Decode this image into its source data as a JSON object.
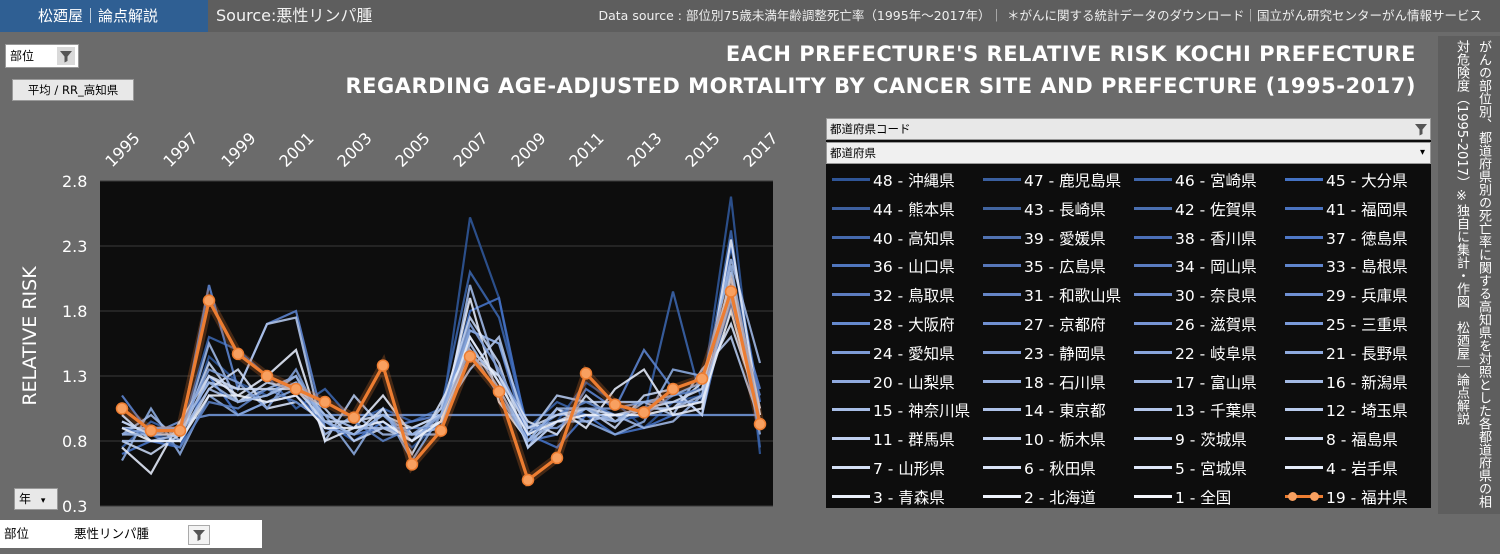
{
  "header": {
    "brand": "松廼屋｜論点解説",
    "source": "Source:悪性リンパ腫",
    "data_source": "Data source : 部位別75歳未満年齢調整死亡率（1995年～2017年）｜ ＊がんに関する統計データのダウンロード｜国立がん研究センターがん情報サービス"
  },
  "filters": {
    "site_label": "部位",
    "avg_label": "平均 / RR_高知県",
    "prefcode_label": "都道府県コード",
    "pref_label": "都道府県",
    "year_label": "年",
    "bottom_key": "部位",
    "bottom_value": "悪性リンパ腫"
  },
  "side_note": "がんの部位別、都道府県別の死亡率に関する高知県を対照とした各都道府県の相対危険度（1995-2017）※独自に集計・作図　松廼屋｜論点解説",
  "colors": {
    "highlight": "#ed7d31",
    "blue_dark": "#2f5597",
    "blue_light": "#dde6f5",
    "plot_bg": "#0d0d0d"
  },
  "chart_data": {
    "type": "line",
    "title_line1": "EACH PREFECTURE'S RELATIVE RISK KOCHI PREFECTURE",
    "title_line2": "REGARDING AGE-ADJUSTED MORTALITY BY CANCER SITE AND PREFECTURE (1995-2017)",
    "ylabel": "RELATIVE RISK",
    "ylim": [
      0.3,
      2.8
    ],
    "yticks": [
      "2.8",
      "2.3",
      "1.8",
      "1.3",
      "0.8",
      "0.3"
    ],
    "ytick_values": [
      2.8,
      2.3,
      1.8,
      1.3,
      0.8,
      0.3
    ],
    "x": [
      1995,
      1996,
      1997,
      1998,
      1999,
      2000,
      2001,
      2002,
      2003,
      2004,
      2005,
      2006,
      2007,
      2008,
      2009,
      2010,
      2011,
      2012,
      2013,
      2014,
      2015,
      2016,
      2017
    ],
    "xtick_labels": [
      "1995",
      "1997",
      "1999",
      "2001",
      "2003",
      "2005",
      "2007",
      "2009",
      "2011",
      "2013",
      "2015",
      "2017"
    ],
    "highlight_series": {
      "name": "19 - 福井県",
      "values": [
        1.05,
        0.88,
        0.88,
        1.88,
        1.47,
        1.3,
        1.2,
        1.1,
        0.98,
        1.38,
        0.62,
        0.88,
        1.45,
        1.18,
        0.5,
        0.67,
        1.32,
        1.08,
        1.02,
        1.2,
        1.28,
        1.95,
        0.93
      ]
    },
    "legend": [
      "48 - 沖縄県",
      "47 - 鹿児島県",
      "46 - 宮崎県",
      "45 - 大分県",
      "44 - 熊本県",
      "43 - 長崎県",
      "42 - 佐賀県",
      "41 - 福岡県",
      "40 - 高知県",
      "39 - 愛媛県",
      "38 - 香川県",
      "37 - 徳島県",
      "36 - 山口県",
      "35 - 広島県",
      "34 - 岡山県",
      "33 - 島根県",
      "32 - 鳥取県",
      "31 - 和歌山県",
      "30 - 奈良県",
      "29 - 兵庫県",
      "28 - 大阪府",
      "27 - 京都府",
      "26 - 滋賀県",
      "25 - 三重県",
      "24 - 愛知県",
      "23 - 静岡県",
      "22 - 岐阜県",
      "21 - 長野県",
      "20 - 山梨県",
      "18 - 石川県",
      "17 - 富山県",
      "16 - 新潟県",
      "15 - 神奈川県",
      "14 - 東京都",
      "13 - 千葉県",
      "12 - 埼玉県",
      "11 - 群馬県",
      "10 - 栃木県",
      "9 - 茨城県",
      "8 - 福島県",
      "7 - 山形県",
      "6 - 秋田県",
      "5 - 宮城県",
      "4 - 岩手県",
      "3 - 青森県",
      "2 - 北海道",
      "1 - 全国",
      "19 - 福井県"
    ],
    "background_series": [
      [
        0.95,
        0.85,
        0.8,
        1.45,
        1.25,
        1.15,
        1.25,
        1.0,
        0.9,
        0.95,
        0.75,
        0.95,
        2.52,
        1.9,
        0.75,
        0.95,
        1.25,
        1.1,
        0.9,
        1.1,
        1.15,
        2.68,
        0.7
      ],
      [
        0.75,
        0.95,
        0.85,
        1.6,
        1.5,
        1.3,
        1.05,
        1.2,
        0.95,
        1.05,
        0.95,
        1.05,
        2.1,
        1.75,
        0.9,
        1.1,
        1.0,
        0.95,
        1.0,
        1.95,
        1.1,
        2.42,
        0.75
      ],
      [
        0.7,
        0.8,
        0.75,
        1.3,
        1.0,
        1.1,
        1.15,
        0.95,
        0.8,
        0.95,
        0.8,
        0.95,
        1.8,
        1.9,
        0.85,
        0.75,
        1.0,
        0.85,
        0.9,
        1.0,
        1.0,
        2.3,
        1.1
      ],
      [
        1.15,
        0.85,
        0.85,
        2.0,
        1.2,
        1.7,
        1.8,
        0.9,
        0.85,
        0.9,
        0.95,
        1.0,
        1.65,
        1.55,
        0.8,
        0.85,
        1.2,
        1.05,
        1.5,
        1.2,
        1.0,
        1.95,
        1.2
      ],
      [
        0.95,
        0.85,
        0.95,
        1.0,
        1.0,
        1.0,
        1.0,
        1.0,
        1.0,
        1.0,
        1.0,
        1.0,
        1.0,
        1.0,
        1.0,
        1.0,
        1.0,
        1.0,
        1.0,
        1.0,
        1.0,
        1.0,
        1.0
      ],
      [
        0.65,
        1.05,
        0.7,
        1.15,
        1.0,
        1.1,
        1.2,
        1.0,
        0.7,
        1.05,
        0.65,
        1.0,
        1.65,
        1.55,
        0.9,
        0.95,
        0.95,
        0.85,
        0.95,
        1.35,
        1.3,
        1.95,
        0.85
      ],
      [
        0.85,
        1.0,
        0.8,
        1.55,
        1.1,
        1.2,
        1.3,
        0.85,
        1.0,
        0.85,
        0.85,
        0.85,
        2.0,
        1.3,
        0.75,
        1.05,
        0.95,
        1.0,
        0.9,
        0.95,
        1.15,
        2.2,
        1.4
      ],
      [
        0.9,
        0.9,
        0.9,
        1.25,
        1.2,
        1.7,
        1.75,
        0.8,
        1.15,
        0.9,
        0.9,
        1.0,
        1.35,
        1.6,
        0.85,
        1.15,
        1.1,
        1.1,
        1.1,
        1.0,
        1.35,
        1.6,
        0.95
      ],
      [
        0.8,
        0.7,
        0.85,
        1.4,
        1.1,
        1.25,
        1.2,
        1.05,
        0.8,
        0.9,
        0.8,
        1.05,
        1.75,
        1.4,
        0.75,
        0.95,
        1.05,
        0.9,
        1.15,
        1.2,
        1.0,
        2.1,
        0.9
      ],
      [
        1.0,
        0.8,
        0.8,
        1.2,
        1.35,
        1.05,
        1.1,
        0.95,
        0.85,
        1.05,
        0.7,
        1.1,
        1.5,
        1.3,
        0.95,
        0.85,
        1.15,
        0.95,
        1.05,
        1.05,
        1.25,
        1.7,
        1.05
      ],
      [
        0.75,
        0.55,
        0.95,
        1.3,
        1.15,
        1.3,
        1.5,
        0.8,
        0.9,
        1.15,
        0.85,
        0.95,
        1.9,
        1.1,
        0.8,
        1.05,
        0.9,
        1.2,
        1.35,
        1.0,
        1.05,
        2.35,
        1.0
      ],
      [
        0.9,
        0.85,
        0.75,
        1.1,
        1.05,
        1.2,
        1.1,
        0.95,
        0.95,
        0.8,
        0.9,
        0.9,
        1.6,
        1.25,
        0.85,
        1.0,
        1.1,
        1.0,
        1.0,
        1.15,
        1.2,
        1.85,
        1.15
      ],
      [
        0.85,
        0.9,
        0.9,
        1.35,
        1.25,
        1.05,
        1.35,
        0.9,
        0.85,
        1.0,
        0.8,
        1.0,
        1.7,
        1.35,
        0.9,
        0.9,
        1.05,
        1.05,
        1.1,
        1.1,
        1.1,
        2.0,
        0.95
      ],
      [
        0.8,
        0.8,
        0.85,
        1.2,
        1.1,
        1.15,
        1.25,
        1.0,
        0.9,
        0.9,
        0.85,
        0.9,
        1.55,
        1.2,
        0.8,
        0.95,
        1.0,
        0.95,
        1.05,
        1.05,
        1.15,
        1.9,
        1.0
      ],
      [
        0.95,
        0.85,
        0.85,
        1.3,
        1.2,
        1.2,
        1.2,
        0.95,
        0.95,
        1.0,
        0.9,
        1.0,
        1.45,
        1.3,
        0.9,
        1.0,
        1.05,
        1.0,
        1.05,
        1.1,
        1.2,
        2.05,
        1.05
      ],
      [
        0.9,
        0.8,
        0.8,
        1.15,
        1.15,
        1.1,
        1.15,
        0.9,
        0.9,
        0.95,
        0.8,
        0.95,
        1.6,
        1.25,
        0.85,
        0.95,
        1.0,
        1.0,
        1.0,
        1.05,
        1.1,
        1.8,
        1.0
      ],
      [
        0.85,
        0.85,
        0.9,
        1.25,
        1.1,
        1.15,
        1.3,
        0.95,
        0.85,
        1.0,
        0.85,
        1.0,
        1.5,
        1.15,
        0.8,
        1.05,
        1.05,
        0.95,
        1.1,
        1.15,
        1.25,
        2.15,
        0.95
      ]
    ]
  }
}
